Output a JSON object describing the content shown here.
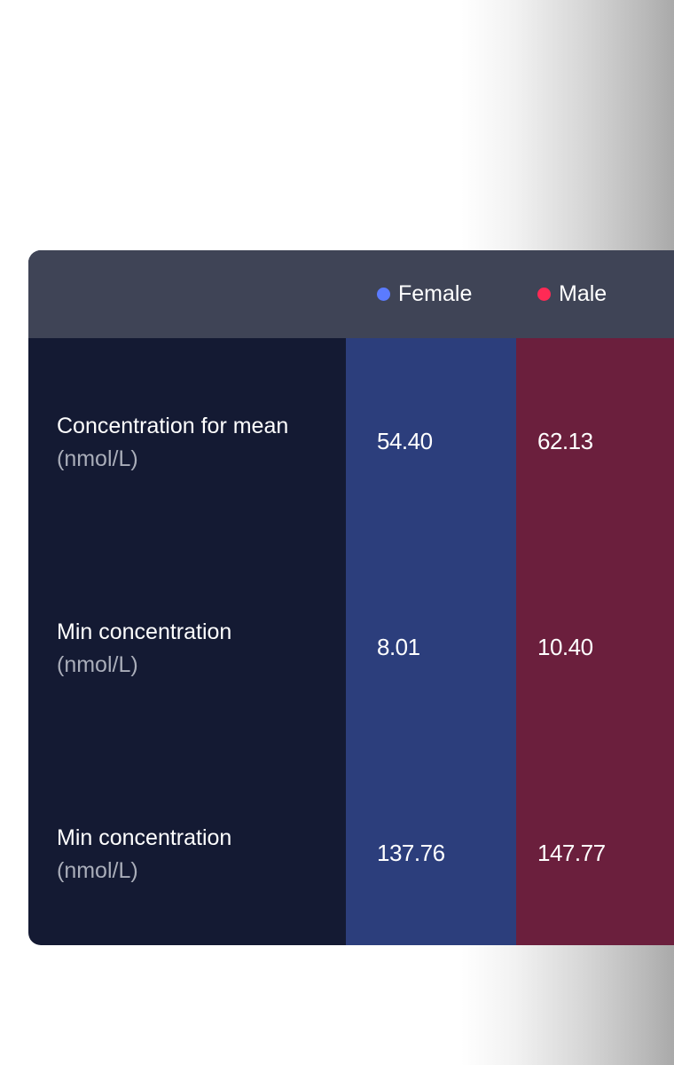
{
  "header": {
    "legend": [
      {
        "label": "Female",
        "color": "#5b7bff"
      },
      {
        "label": "Male",
        "color": "#ff2a55"
      }
    ]
  },
  "rows": [
    {
      "label": "Concentration for mean",
      "unit": "(nmol/L)",
      "female": "54.40",
      "male": "62.13"
    },
    {
      "label": "Min concentration",
      "unit": "(nmol/L)",
      "female": "8.01",
      "male": "10.40"
    },
    {
      "label": "Min concentration",
      "unit": "(nmol/L)",
      "female": "137.76",
      "male": "147.77"
    }
  ],
  "colors": {
    "header_bg": "#3f4456",
    "label_col_bg": "#141a33",
    "female_col_bg": "#2c3e7c",
    "male_col_bg": "#6b1f3d"
  }
}
